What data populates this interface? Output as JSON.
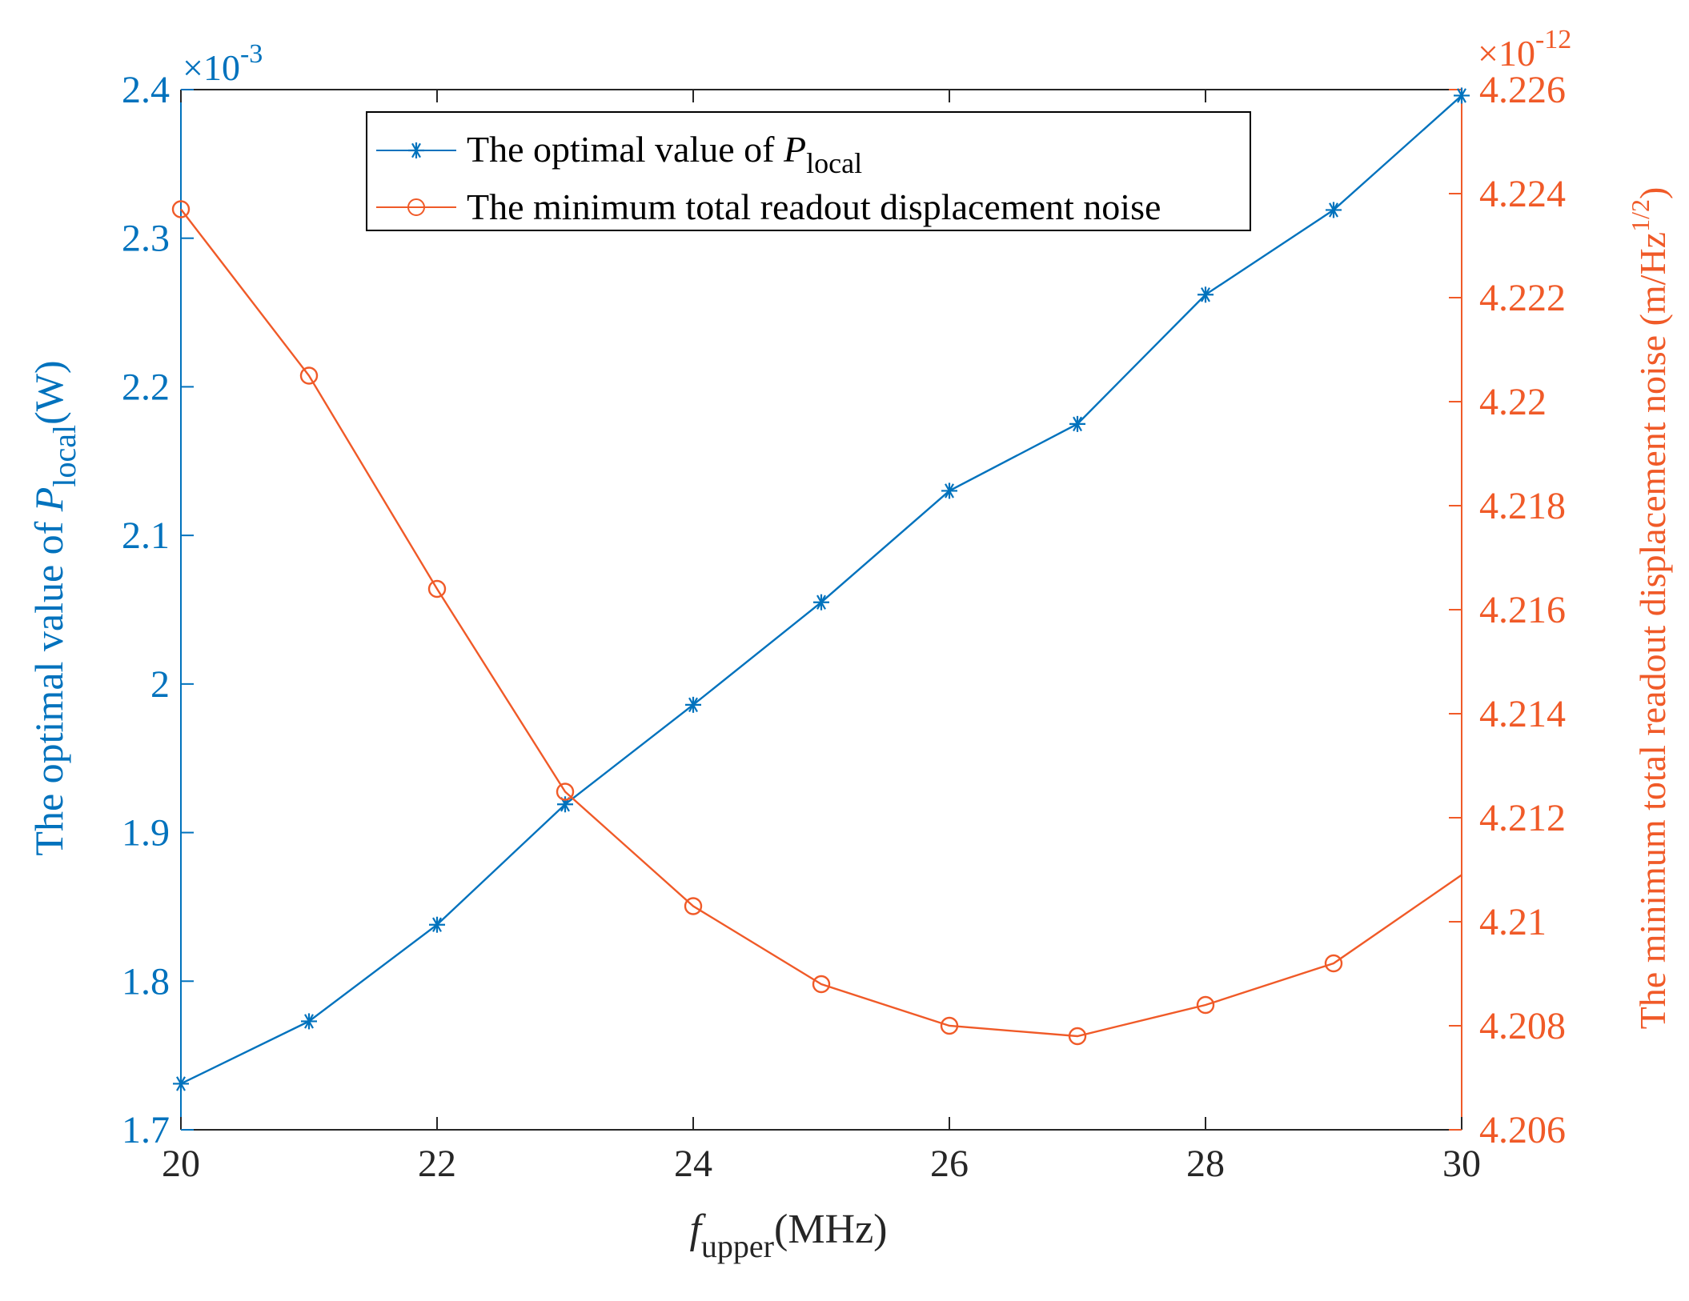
{
  "colors": {
    "left": "#0072BD",
    "right": "#F05A28",
    "axis": "#262626",
    "legend_border": "#000000"
  },
  "chart_data": {
    "type": "line",
    "x": [
      20,
      21,
      22,
      23,
      24,
      25,
      26,
      27,
      28,
      29,
      30
    ],
    "xlim": [
      20,
      30
    ],
    "xticks": [
      20,
      22,
      24,
      26,
      28,
      30
    ],
    "xlabel": {
      "main": "f",
      "sub": "upper",
      "unit": "(MHz)"
    },
    "grid": false,
    "legend_position": "top-center",
    "left_axis": {
      "ylim": [
        1.7,
        2.4
      ],
      "yticks": [
        1.7,
        1.8,
        1.9,
        2.0,
        2.1,
        2.2,
        2.3,
        2.4
      ],
      "ytick_labels": [
        "1.7",
        "1.8",
        "1.9",
        "2",
        "2.1",
        "2.2",
        "2.3",
        "2.4"
      ],
      "exponent_prefix": "×10",
      "exponent": "-3",
      "ylabel": {
        "main": "The optimal value of ",
        "var": "P",
        "sub": "local",
        "unit": "(W)"
      }
    },
    "right_axis": {
      "ylim": [
        4.206,
        4.226
      ],
      "yticks": [
        4.206,
        4.208,
        4.21,
        4.212,
        4.214,
        4.216,
        4.218,
        4.22,
        4.222,
        4.224,
        4.226
      ],
      "ytick_labels": [
        "4.206",
        "4.208",
        "4.21",
        "4.212",
        "4.214",
        "4.216",
        "4.218",
        "4.22",
        "4.222",
        "4.224",
        "4.226"
      ],
      "exponent_prefix": "×10",
      "exponent": "-12",
      "ylabel": {
        "main": "The minimum total readout displacement noise (m/Hz",
        "sup": "1/2",
        "end": ")"
      }
    },
    "series": [
      {
        "name": "The optimal value of P_local",
        "legend_main": "The optimal value of ",
        "legend_var": "P",
        "legend_sub": "local",
        "axis": "left",
        "marker": "asterisk",
        "values": [
          1.731,
          1.773,
          1.838,
          1.919,
          1.986,
          2.055,
          2.13,
          2.175,
          2.262,
          2.319,
          2.396
        ]
      },
      {
        "name": "The minimum total readout displacement noise",
        "legend_main": "The minimum total readout displacement noise",
        "axis": "right",
        "marker": "circle",
        "values": [
          4.2237,
          4.2205,
          4.2164,
          4.2125,
          4.2103,
          4.2088,
          4.208,
          4.2078,
          4.2084,
          4.2092,
          4.2109
        ],
        "marker_count": 10
      }
    ]
  }
}
